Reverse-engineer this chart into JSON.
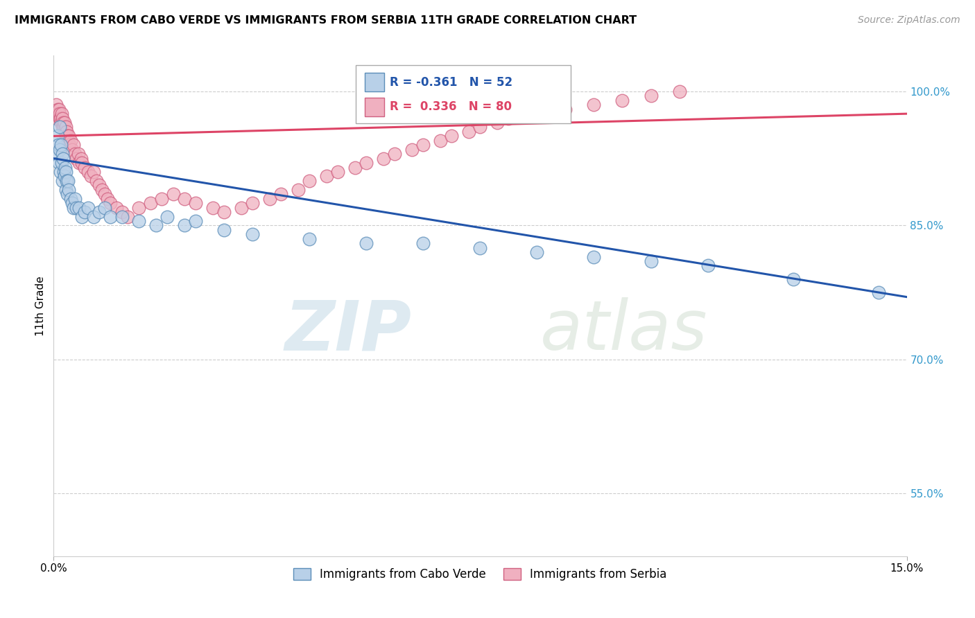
{
  "title": "IMMIGRANTS FROM CABO VERDE VS IMMIGRANTS FROM SERBIA 11TH GRADE CORRELATION CHART",
  "source": "Source: ZipAtlas.com",
  "ylabel": "11th Grade",
  "xlim": [
    0.0,
    15.0
  ],
  "ylim": [
    48.0,
    104.0
  ],
  "blue_R": -0.361,
  "blue_N": 52,
  "pink_R": 0.336,
  "pink_N": 80,
  "blue_color": "#b8d0e8",
  "blue_edge": "#5b8db8",
  "pink_color": "#f0b0c0",
  "pink_edge": "#d06080",
  "blue_line_color": "#2255aa",
  "pink_line_color": "#dd4466",
  "legend_label_blue": "Immigrants from Cabo Verde",
  "legend_label_pink": "Immigrants from Serbia",
  "ytick_vals": [
    55.0,
    70.0,
    85.0,
    100.0
  ],
  "blue_scatter_x": [
    0.05,
    0.07,
    0.08,
    0.09,
    0.1,
    0.11,
    0.12,
    0.13,
    0.14,
    0.15,
    0.16,
    0.17,
    0.18,
    0.19,
    0.2,
    0.21,
    0.22,
    0.23,
    0.24,
    0.25,
    0.27,
    0.3,
    0.33,
    0.35,
    0.38,
    0.4,
    0.45,
    0.5,
    0.55,
    0.6,
    0.7,
    0.8,
    0.9,
    1.0,
    1.2,
    1.5,
    1.8,
    2.0,
    2.3,
    2.5,
    3.0,
    3.5,
    4.5,
    5.5,
    6.5,
    7.5,
    8.5,
    9.5,
    10.5,
    11.5,
    13.0,
    14.5
  ],
  "blue_scatter_y": [
    93.0,
    95.0,
    94.0,
    92.0,
    96.0,
    93.5,
    91.0,
    94.0,
    92.0,
    93.0,
    90.0,
    92.5,
    91.0,
    90.5,
    91.5,
    89.0,
    91.0,
    90.0,
    88.5,
    90.0,
    89.0,
    88.0,
    87.5,
    87.0,
    88.0,
    87.0,
    87.0,
    86.0,
    86.5,
    87.0,
    86.0,
    86.5,
    87.0,
    86.0,
    86.0,
    85.5,
    85.0,
    86.0,
    85.0,
    85.5,
    84.5,
    84.0,
    83.5,
    83.0,
    83.0,
    82.5,
    82.0,
    81.5,
    81.0,
    80.5,
    79.0,
    77.5
  ],
  "pink_scatter_x": [
    0.04,
    0.05,
    0.06,
    0.07,
    0.08,
    0.09,
    0.1,
    0.11,
    0.12,
    0.13,
    0.14,
    0.15,
    0.16,
    0.17,
    0.18,
    0.19,
    0.2,
    0.21,
    0.22,
    0.23,
    0.24,
    0.25,
    0.27,
    0.28,
    0.3,
    0.32,
    0.35,
    0.38,
    0.4,
    0.43,
    0.45,
    0.48,
    0.5,
    0.55,
    0.6,
    0.65,
    0.7,
    0.75,
    0.8,
    0.85,
    0.9,
    0.95,
    1.0,
    1.1,
    1.2,
    1.3,
    1.5,
    1.7,
    1.9,
    2.1,
    2.3,
    2.5,
    2.8,
    3.0,
    3.3,
    3.5,
    3.8,
    4.0,
    4.3,
    4.5,
    4.8,
    5.0,
    5.3,
    5.5,
    5.8,
    6.0,
    6.3,
    6.5,
    6.8,
    7.0,
    7.3,
    7.5,
    7.8,
    8.0,
    8.5,
    9.0,
    9.5,
    10.0,
    10.5,
    11.0
  ],
  "pink_scatter_y": [
    97.5,
    98.5,
    97.0,
    98.0,
    97.5,
    98.0,
    97.0,
    97.5,
    97.0,
    96.5,
    97.5,
    96.0,
    97.0,
    96.5,
    96.0,
    96.5,
    95.5,
    96.0,
    95.0,
    95.5,
    95.0,
    94.5,
    95.0,
    94.0,
    94.5,
    93.5,
    94.0,
    93.0,
    92.5,
    93.0,
    92.0,
    92.5,
    92.0,
    91.5,
    91.0,
    90.5,
    91.0,
    90.0,
    89.5,
    89.0,
    88.5,
    88.0,
    87.5,
    87.0,
    86.5,
    86.0,
    87.0,
    87.5,
    88.0,
    88.5,
    88.0,
    87.5,
    87.0,
    86.5,
    87.0,
    87.5,
    88.0,
    88.5,
    89.0,
    90.0,
    90.5,
    91.0,
    91.5,
    92.0,
    92.5,
    93.0,
    93.5,
    94.0,
    94.5,
    95.0,
    95.5,
    96.0,
    96.5,
    97.0,
    97.5,
    98.0,
    98.5,
    99.0,
    99.5,
    100.0
  ],
  "blue_line_x0": 0.0,
  "blue_line_y0": 92.5,
  "blue_line_x1": 15.0,
  "blue_line_y1": 77.0,
  "pink_line_x0": 0.0,
  "pink_line_y0": 95.0,
  "pink_line_x1": 15.0,
  "pink_line_y1": 97.5
}
